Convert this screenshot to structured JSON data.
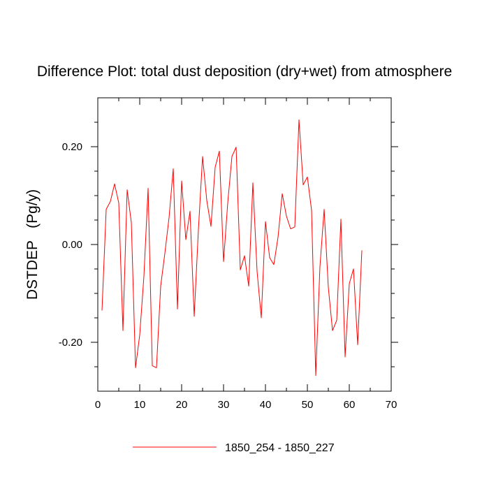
{
  "chart_data": {
    "type": "line",
    "title": "Difference Plot: total dust deposition (dry+wet) from atmosphere",
    "xlabel": "",
    "ylabel": "DSTDEP   (Pg/y)",
    "xlim": [
      0,
      70
    ],
    "ylim": [
      -0.3,
      0.3
    ],
    "x_ticks": [
      0,
      10,
      20,
      30,
      40,
      50,
      60,
      70
    ],
    "x_tick_labels": [
      "0",
      "10",
      "20",
      "30",
      "40",
      "50",
      "60",
      "70"
    ],
    "y_ticks": [
      -0.2,
      0.0,
      0.2
    ],
    "y_tick_labels": [
      "-0.20",
      "0.00",
      "0.20"
    ],
    "grid": false,
    "legend_position": "bottom-center",
    "series": [
      {
        "name": "1850_254 - 1850_227",
        "color": "#ff0000",
        "x": [
          1,
          2,
          3,
          4,
          5,
          6,
          7,
          8,
          9,
          10,
          11,
          12,
          13,
          14,
          15,
          16,
          17,
          18,
          19,
          20,
          21,
          22,
          23,
          24,
          25,
          26,
          27,
          28,
          29,
          30,
          31,
          32,
          33,
          34,
          35,
          36,
          37,
          38,
          39,
          40,
          41,
          42,
          43,
          44,
          45,
          46,
          47,
          48,
          49,
          50,
          51,
          52,
          53,
          54,
          55,
          56,
          57,
          58,
          59,
          60,
          61,
          62,
          63
        ],
        "values": [
          -0.135,
          0.072,
          0.088,
          0.124,
          0.085,
          -0.176,
          0.112,
          0.045,
          -0.252,
          -0.185,
          -0.065,
          0.115,
          -0.248,
          -0.252,
          -0.085,
          -0.018,
          0.055,
          0.155,
          -0.132,
          0.13,
          0.01,
          0.068,
          -0.147,
          0.03,
          0.18,
          0.09,
          0.037,
          0.158,
          0.191,
          -0.035,
          0.085,
          0.18,
          0.199,
          -0.052,
          -0.023,
          -0.085,
          0.126,
          -0.055,
          -0.15,
          0.047,
          -0.027,
          -0.041,
          0.015,
          0.104,
          0.058,
          0.032,
          0.036,
          0.255,
          0.122,
          0.138,
          0.07,
          -0.268,
          -0.045,
          0.072,
          -0.088,
          -0.176,
          -0.155,
          0.052,
          -0.23,
          -0.08,
          -0.05,
          -0.205,
          -0.012
        ]
      }
    ]
  }
}
